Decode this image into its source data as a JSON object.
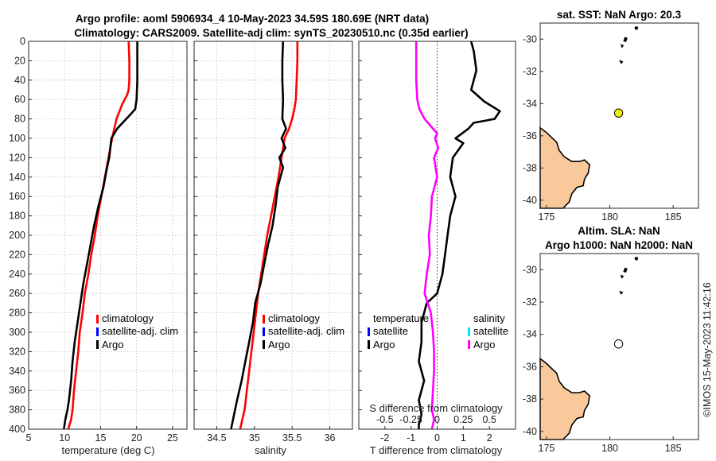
{
  "titles": {
    "line1": "Argo profile: aoml 5906934_4 10-May-2023 34.59S 180.69E (NRT data)",
    "line2": "Climatology: CARS2009. Satellite-adj clim: synTS_20230510.nc (0.35d earlier)",
    "map1": "sat. SST: NaN Argo: 20.3",
    "map2_line1": "Altim. SLA: NaN",
    "map2_line2": "Argo h1000: NaN h2000: NaN",
    "watermark": "©IMOS 15-May-2023 11:42:16"
  },
  "colors": {
    "climatology": "#ff0000",
    "satellite": "#0000ff",
    "argo": "#000000",
    "sat_s": "#00e5ff",
    "argo_s": "#ff00ff",
    "land": "#f9c89b",
    "float": "#f2f200"
  },
  "chart_data": [
    {
      "type": "line",
      "name": "temperature",
      "xlabel": "temperature (deg C)",
      "ylabel": "",
      "xlim": [
        5,
        27
      ],
      "ylim": [
        0,
        400
      ],
      "xticks": [
        5,
        10,
        15,
        20,
        25
      ],
      "yticks": [
        0,
        20,
        40,
        60,
        80,
        100,
        120,
        140,
        160,
        180,
        200,
        220,
        240,
        260,
        280,
        300,
        320,
        340,
        360,
        380,
        400
      ],
      "grid": true,
      "legend": [
        "climatology",
        "satellite-adj. clim",
        "Argo"
      ],
      "series": [
        {
          "name": "climatology",
          "color": "#ff0000",
          "x": [
            18.9,
            19.0,
            19.0,
            18.9,
            18.7,
            18.0,
            17.2,
            16.6,
            16.1,
            15.6,
            15.1,
            14.6,
            14.2,
            13.7,
            13.3,
            12.8,
            12.5,
            12.1,
            11.9,
            11.6,
            11.3,
            11.1,
            10.9,
            10.7,
            10.5
          ],
          "y": [
            0,
            20,
            40,
            50,
            55,
            65,
            80,
            100,
            120,
            140,
            160,
            180,
            200,
            220,
            240,
            260,
            280,
            300,
            320,
            340,
            360,
            380,
            390,
            395,
            400
          ]
        },
        {
          "name": "Argo",
          "color": "#000000",
          "x": [
            20.1,
            20.1,
            20.1,
            20.0,
            19.8,
            19.2,
            17.3,
            16.5,
            16.2,
            15.9,
            15.4,
            14.7,
            14.1,
            13.6,
            13.1,
            12.6,
            12.2,
            11.8,
            11.4,
            11.1,
            10.9,
            10.6,
            10.4,
            10.1,
            9.9
          ],
          "y": [
            0,
            20,
            40,
            60,
            70,
            75,
            90,
            100,
            120,
            130,
            150,
            170,
            190,
            210,
            230,
            250,
            270,
            290,
            310,
            330,
            350,
            370,
            380,
            390,
            400
          ]
        }
      ]
    },
    {
      "type": "line",
      "name": "salinity",
      "xlabel": "salinity",
      "xlim": [
        34.2,
        36.3
      ],
      "ylim": [
        0,
        400
      ],
      "xticks": [
        34.5,
        35,
        35.5,
        36
      ],
      "grid": true,
      "legend": [
        "climatology",
        "satellite-adj. clim",
        "Argo"
      ],
      "series": [
        {
          "name": "climatology",
          "color": "#ff0000",
          "x": [
            35.57,
            35.57,
            35.56,
            35.55,
            35.53,
            35.5,
            35.46,
            35.4,
            35.36,
            35.32,
            35.27,
            35.22,
            35.17,
            35.13,
            35.09,
            35.05,
            35.02,
            34.99,
            34.96,
            34.93,
            34.9,
            34.87,
            34.84,
            34.81
          ],
          "y": [
            0,
            20,
            40,
            60,
            70,
            80,
            90,
            100,
            120,
            140,
            160,
            180,
            200,
            220,
            240,
            260,
            280,
            300,
            320,
            340,
            360,
            380,
            390,
            400
          ]
        },
        {
          "name": "Argo",
          "color": "#000000",
          "x": [
            35.38,
            35.37,
            35.37,
            35.38,
            35.37,
            35.42,
            35.36,
            35.41,
            35.33,
            35.38,
            35.31,
            35.28,
            35.24,
            35.18,
            35.13,
            35.08,
            35.01,
            34.98,
            34.93,
            34.88,
            34.83,
            34.77,
            34.73,
            34.69
          ],
          "y": [
            0,
            20,
            40,
            60,
            80,
            90,
            100,
            110,
            120,
            130,
            150,
            170,
            190,
            210,
            230,
            250,
            270,
            290,
            310,
            330,
            350,
            370,
            385,
            400
          ]
        }
      ]
    },
    {
      "type": "line",
      "name": "differences",
      "xlabel": "T difference from climatology",
      "x2label": "S difference from climatology",
      "xlim": [
        -3.0,
        3.0
      ],
      "x2lim": [
        -0.75,
        0.75
      ],
      "ylim": [
        0,
        400
      ],
      "xticks": [
        -2,
        -1,
        0,
        1,
        2
      ],
      "x2ticks": [
        "-0.5",
        "-0.25",
        "0",
        "0.25",
        "0.5"
      ],
      "x2tickvals": [
        -0.5,
        -0.25,
        0,
        0.25,
        0.5
      ],
      "grid": false,
      "legend_temperature": [
        "temperature",
        "satellite",
        "Argo"
      ],
      "legend_salinity": [
        "salinity",
        "satellite",
        "Argo"
      ],
      "series": [
        {
          "name": "T difference (Argo)",
          "color": "#000000",
          "x": [
            1.3,
            1.4,
            1.5,
            1.3,
            1.8,
            2.4,
            2.2,
            1.4,
            1.2,
            0.7,
            1.0,
            0.6,
            0.5,
            0.7,
            0.5,
            0.4,
            0.3,
            0.2,
            0.0,
            -0.4,
            -0.6,
            -0.6,
            -0.7,
            -0.5,
            -0.7,
            -0.6,
            -0.7,
            -0.7
          ],
          "y": [
            0,
            10,
            30,
            50,
            62,
            72,
            80,
            84,
            90,
            100,
            105,
            120,
            140,
            160,
            180,
            200,
            220,
            240,
            260,
            270,
            290,
            310,
            330,
            350,
            370,
            385,
            395,
            400
          ]
        },
        {
          "name": "S difference (Argo)",
          "color": "#ff00ff",
          "x": [
            -0.2,
            -0.2,
            -0.2,
            -0.19,
            -0.17,
            -0.12,
            0.0,
            -0.02,
            0.01,
            -0.03,
            0.0,
            -0.05,
            -0.06,
            -0.08,
            -0.07,
            -0.1,
            -0.12,
            -0.06,
            -0.04,
            -0.03,
            -0.03,
            -0.04,
            -0.05,
            -0.03,
            -0.05
          ],
          "y": [
            0,
            20,
            40,
            60,
            70,
            80,
            95,
            100,
            110,
            120,
            140,
            160,
            180,
            200,
            220,
            240,
            260,
            280,
            300,
            320,
            340,
            360,
            380,
            390,
            400
          ]
        }
      ]
    },
    {
      "type": "scatter",
      "name": "map_sst",
      "xlim": [
        174.5,
        187
      ],
      "ylim": [
        -40.5,
        -29
      ],
      "xticks": [
        175,
        180,
        185
      ],
      "yticks": [
        -30,
        -32,
        -34,
        -36,
        -38,
        -40
      ],
      "float_position": {
        "lon": 180.69,
        "lat": -34.59,
        "filled": true
      }
    },
    {
      "type": "scatter",
      "name": "map_sla",
      "xlim": [
        174.5,
        187
      ],
      "ylim": [
        -40.5,
        -29
      ],
      "xticks": [
        175,
        180,
        185
      ],
      "yticks": [
        -30,
        -32,
        -34,
        -36,
        -38,
        -40
      ],
      "float_position": {
        "lon": 180.69,
        "lat": -34.59,
        "filled": false
      }
    }
  ]
}
